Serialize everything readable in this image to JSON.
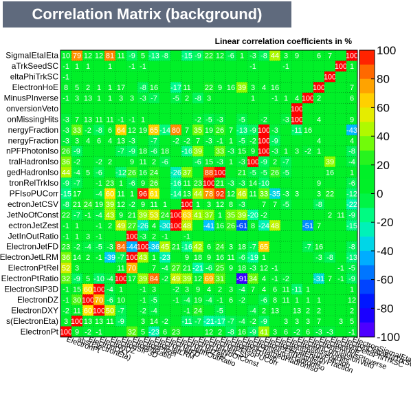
{
  "header": {
    "title": "Correlation Matrix (background)",
    "subtitle": "Linear correlation coefficients in %"
  },
  "chart_data": {
    "type": "heatmap",
    "title": "Correlation Matrix (background)",
    "subtitle": "Linear correlation coefficients in %",
    "variables_bottom_to_top": [
      "ElectronPt",
      "abs(ElectronEta)",
      "ElectronDXY",
      "ElectronDZ",
      "ElectronSIP3D",
      "ElectronPtRatio",
      "ElectronPtRel",
      "ElectronJetLRM",
      "ElectronJetFD",
      "ElectronJetInOutRatio",
      "ElectronJetZest",
      "ElectronJetNoOfConst",
      "ElectronJetCSV",
      "ElectronPFIsoPUCorr",
      "ElectronRelTrkIso",
      "ElectronChargedHadronIso",
      "ElectronNeutralHadronIso",
      "ElectronPFPhotonIso",
      "ElectronEcalEnergyFraction",
      "ElectronEnergyFraction",
      "ElectronMissingHits",
      "ElectronConversionVeto",
      "ElectronEminusPInverse",
      "ElectronHoE",
      "ElectronDeltaPhiTrkSC",
      "ElectronDeltaEtaTrkSC",
      "ElectronSigmaIEtaIEta"
    ],
    "y_tick_labels_visible_top_to_bottom": [
      "SigmaIEtaIEta",
      "aTrkSeedSC",
      "eltaPhiTrkSC",
      "ElectronHoE",
      "MinusPInverse",
      "onversionVeto",
      "onMissingHits",
      "nergyFraction",
      "nergyFraction",
      "nPFPhotonIso",
      "tralHadronIso",
      "gedHadronIso",
      "tronRelTrkIso",
      "PFIsoPUCorr",
      "ectronJetCSV",
      "JetNoOfConst",
      "ectronJetZest",
      "JetInOutRatio",
      "ElectronJetFD",
      "ElectronJetLRM",
      "ElectronPtRel",
      "ElectronPtRatio",
      "ElectronSIP3D",
      "ElectronDZ",
      "ElectronDXY",
      "s(ElectronEta)",
      "ElectronPt"
    ],
    "x_tick_labels_visible": [
      "ElectronPt",
      "abs(ElectronEta)"
    ],
    "diagonal_value": 100,
    "zlim": [
      -100,
      100
    ],
    "colorbar_ticks": [
      100,
      80,
      60,
      40,
      20,
      0,
      -20,
      -40,
      -60,
      -80,
      -100
    ],
    "values_top_to_bottom": [
      [
        10,
        79,
        12,
        12,
        81,
        11,
        -9,
        5,
        -13,
        -8,
        0,
        -15,
        -9,
        22,
        12,
        -6,
        1,
        -3,
        -8,
        44,
        3,
        9,
        0,
        6,
        7,
        0,
        100
      ],
      [
        -1,
        1,
        1,
        0,
        1,
        0,
        -1,
        -1,
        0,
        0,
        0,
        0,
        0,
        0,
        0,
        0,
        0,
        -1,
        0,
        0,
        -1,
        0,
        0,
        0,
        0,
        100,
        1
      ],
      [
        -1,
        0,
        0,
        0,
        0,
        0,
        0,
        0,
        0,
        0,
        0,
        0,
        0,
        0,
        0,
        0,
        0,
        0,
        0,
        0,
        0,
        0,
        0,
        0,
        100,
        0,
        0
      ],
      [
        8,
        5,
        2,
        1,
        1,
        17,
        0,
        -8,
        16,
        0,
        -17,
        11,
        0,
        22,
        9,
        16,
        39,
        3,
        4,
        16,
        0,
        0,
        0,
        100,
        0,
        0,
        7
      ],
      [
        -1,
        3,
        13,
        1,
        1,
        3,
        3,
        -3,
        -7,
        0,
        -5,
        2,
        -8,
        3,
        0,
        0,
        0,
        1,
        0,
        -1,
        1,
        4,
        100,
        2,
        0,
        0,
        6
      ],
      [
        0,
        0,
        0,
        0,
        0,
        0,
        0,
        0,
        0,
        0,
        0,
        0,
        0,
        0,
        0,
        0,
        0,
        0,
        0,
        0,
        0,
        100,
        0,
        0,
        0,
        0,
        0
      ],
      [
        -3,
        7,
        13,
        11,
        11,
        -1,
        -1,
        1,
        0,
        0,
        0,
        0,
        -2,
        -5,
        -3,
        0,
        -5,
        0,
        -2,
        0,
        -3,
        100,
        0,
        4,
        0,
        0,
        9
      ],
      [
        -3,
        33,
        -2,
        -8,
        6,
        64,
        12,
        19,
        65,
        -14,
        80,
        7,
        35,
        19,
        26,
        7,
        -13,
        -9,
        100,
        -3,
        0,
        -11,
        16,
        0,
        0,
        0,
        -43
      ],
      [
        -3,
        3,
        4,
        6,
        4,
        13,
        -3,
        0,
        -7,
        0,
        -2,
        -2,
        7,
        -3,
        -1,
        1,
        -5,
        -2,
        100,
        -9,
        0,
        0,
        0,
        4,
        0,
        0,
        4
      ],
      [
        26,
        -9,
        0,
        0,
        0,
        -7,
        -9,
        18,
        -6,
        18,
        0,
        -16,
        39,
        0,
        33,
        -3,
        15,
        9,
        100,
        -3,
        1,
        3,
        -2,
        1,
        0,
        0,
        -8
      ],
      [
        36,
        -2,
        0,
        -2,
        2,
        0,
        9,
        11,
        2,
        -6,
        0,
        0,
        -6,
        15,
        -3,
        1,
        -3,
        100,
        -9,
        2,
        -7,
        0,
        0,
        0,
        39,
        0,
        -4
      ],
      [
        44,
        -4,
        5,
        -6,
        0,
        -12,
        26,
        16,
        24,
        0,
        -26,
        37,
        0,
        88,
        100,
        0,
        21,
        -5,
        -5,
        26,
        -5,
        0,
        0,
        0,
        16,
        0,
        1
      ],
      [
        -9,
        -7,
        0,
        -1,
        23,
        1,
        -6,
        9,
        26,
        0,
        -16,
        11,
        23,
        100,
        21,
        -3,
        -3,
        14,
        -10,
        0,
        0,
        0,
        0,
        9,
        0,
        0,
        -6
      ],
      [
        -15,
        17,
        0,
        -4,
        60,
        11,
        1,
        96,
        61,
        0,
        -14,
        13,
        44,
        78,
        92,
        12,
        46,
        11,
        33,
        -35,
        -3,
        3,
        0,
        3,
        22,
        0,
        -12
      ],
      [
        -8,
        21,
        24,
        19,
        39,
        12,
        -2,
        9,
        11,
        1,
        0,
        100,
        1,
        3,
        12,
        8,
        -3,
        0,
        7,
        7,
        -5,
        0,
        0,
        -8,
        0,
        0,
        -22
      ],
      [
        22,
        -7,
        -1,
        -4,
        43,
        9,
        21,
        39,
        53,
        24,
        100,
        63,
        41,
        37,
        1,
        35,
        39,
        -20,
        -2,
        0,
        0,
        0,
        0,
        0,
        2,
        11,
        -9
      ],
      [
        -1,
        1,
        0,
        -1,
        2,
        49,
        27,
        -26,
        4,
        -30,
        100,
        48,
        0,
        -41,
        16,
        26,
        -61,
        8,
        -24,
        48,
        0,
        0,
        -51,
        7,
        0,
        0,
        -15
      ],
      [
        -1,
        1,
        3,
        -1,
        0,
        0,
        100,
        -3,
        2,
        -1,
        0,
        -1,
        0,
        0,
        0,
        0,
        0,
        0,
        0,
        0,
        0,
        0,
        0,
        0,
        0,
        0,
        0
      ],
      [
        23,
        -2,
        -4,
        -5,
        -3,
        84,
        -44,
        100,
        -36,
        45,
        21,
        -16,
        42,
        6,
        24,
        3,
        18,
        -7,
        65,
        0,
        0,
        0,
        -7,
        16,
        0,
        0,
        -8
      ],
      [
        36,
        14,
        2,
        -1,
        -39,
        -7,
        100,
        43,
        1,
        -23,
        0,
        9,
        18,
        9,
        16,
        11,
        -6,
        -19,
        1,
        0,
        0,
        0,
        0,
        -3,
        -8,
        0,
        -13
      ],
      [
        52,
        3,
        0,
        0,
        0,
        11,
        70,
        0,
        7,
        -4,
        27,
        21,
        -21,
        -6,
        25,
        9,
        18,
        -3,
        12,
        -1,
        0,
        0,
        0,
        0,
        0,
        -1,
        -5
      ],
      [
        32,
        -9,
        5,
        -10,
        -4,
        100,
        17,
        39,
        84,
        -2,
        49,
        39,
        12,
        69,
        31,
        0,
        -91,
        34,
        4,
        -1,
        -2,
        0,
        0,
        -31,
        7,
        -1,
        -9
      ],
      [
        -1,
        15,
        60,
        100,
        -4,
        1,
        0,
        -1,
        3,
        0,
        -2,
        3,
        9,
        4,
        2,
        3,
        -4,
        7,
        4,
        6,
        11,
        -11,
        1,
        0,
        0,
        0,
        1
      ],
      [
        -1,
        30,
        100,
        70,
        -6,
        10,
        0,
        -1,
        -5,
        0,
        -1,
        -4,
        19,
        -4,
        -1,
        6,
        -2,
        0,
        -6,
        8,
        11,
        1,
        1,
        1,
        0,
        0,
        12
      ],
      [
        -2,
        11,
        60,
        100,
        50,
        -7,
        0,
        -2,
        -4,
        0,
        0,
        -1,
        24,
        0,
        -5,
        0,
        0,
        -4,
        2,
        13,
        0,
        13,
        2,
        2,
        0,
        0,
        2
      ],
      [
        3,
        100,
        13,
        13,
        11,
        -9,
        0,
        3,
        14,
        -2,
        0,
        -11,
        -7,
        -21,
        -17,
        -7,
        -4,
        -2,
        -9,
        0,
        3,
        3,
        3,
        7,
        0,
        3,
        5
      ],
      [
        100,
        9,
        -2,
        -1,
        0,
        0,
        32,
        5,
        -23,
        6,
        23,
        0,
        0,
        12,
        2,
        -8,
        16,
        -9,
        41,
        3,
        6,
        -2,
        6,
        -3,
        -3,
        0,
        -1
      ]
    ]
  }
}
